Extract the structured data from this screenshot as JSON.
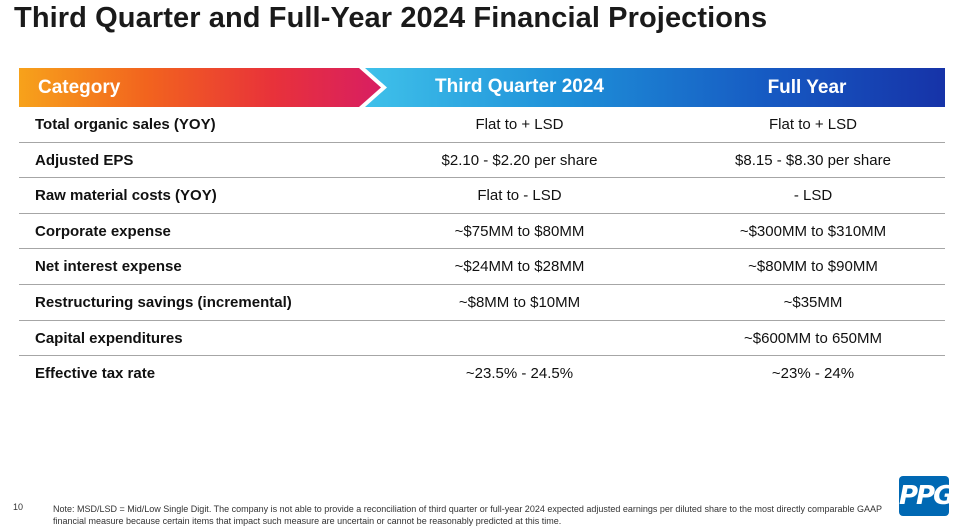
{
  "title": "Third Quarter and Full-Year 2024 Financial Projections",
  "header": {
    "category": "Category",
    "q3": "Third Quarter 2024",
    "fy": "Full Year"
  },
  "rows": [
    {
      "category": "Total organic sales (YOY)",
      "q3": "Flat to + LSD",
      "fy": "Flat to + LSD"
    },
    {
      "category": "Adjusted EPS",
      "q3": "$2.10 - $2.20 per share",
      "fy": "$8.15 - $8.30 per share"
    },
    {
      "category": "Raw material costs (YOY)",
      "q3": "Flat to - LSD",
      "fy": "- LSD"
    },
    {
      "category": "Corporate expense",
      "q3": "~$75MM to $80MM",
      "fy": "~$300MM to $310MM"
    },
    {
      "category": "Net interest expense",
      "q3": "~$24MM to $28MM",
      "fy": "~$80MM to $90MM"
    },
    {
      "category": "Restructuring savings (incremental)",
      "q3": "~$8MM to $10MM",
      "fy": "~$35MM"
    },
    {
      "category": "Capital expenditures",
      "q3": "",
      "fy": "~$600MM to 650MM"
    },
    {
      "category": "Effective tax rate",
      "q3": "~23.5% - 24.5%",
      "fy": "~23% - 24%"
    }
  ],
  "footer": {
    "page_number": "10",
    "note": "Note: MSD/LSD =  Mid/Low Single Digit. The company is not able to provide a reconciliation of third quarter or full-year 2024 expected adjusted earnings per diluted share to the most directly comparable GAAP financial measure because certain items that impact such measure are uncertain or cannot be reasonably predicted at this time.",
    "logo_text": "PPG"
  },
  "colors": {
    "category_gradient": [
      "#f7a21b",
      "#d81e62"
    ],
    "columns_gradient": [
      "#3fc1ea",
      "#1633a8"
    ],
    "logo": "#0068b3"
  }
}
